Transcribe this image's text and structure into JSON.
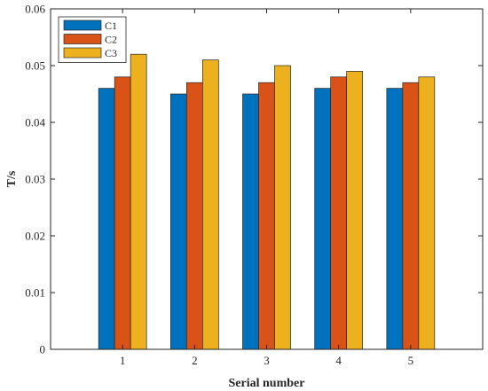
{
  "chart_data": {
    "type": "bar",
    "categories": [
      "1",
      "2",
      "3",
      "4",
      "5"
    ],
    "series": [
      {
        "name": "C1",
        "values": [
          0.046,
          0.045,
          0.045,
          0.046,
          0.046
        ],
        "color": "#0072BD"
      },
      {
        "name": "C2",
        "values": [
          0.048,
          0.047,
          0.047,
          0.048,
          0.047
        ],
        "color": "#D95319"
      },
      {
        "name": "C3",
        "values": [
          0.052,
          0.051,
          0.05,
          0.049,
          0.048
        ],
        "color": "#EDB120"
      }
    ],
    "xlabel": "Serial number",
    "ylabel": "T/s",
    "ylim": [
      0,
      0.06
    ],
    "yticks": [
      "0",
      "0.01",
      "0.02",
      "0.03",
      "0.04",
      "0.05",
      "0.06"
    ],
    "grid": false,
    "legend_position": "top-left"
  }
}
